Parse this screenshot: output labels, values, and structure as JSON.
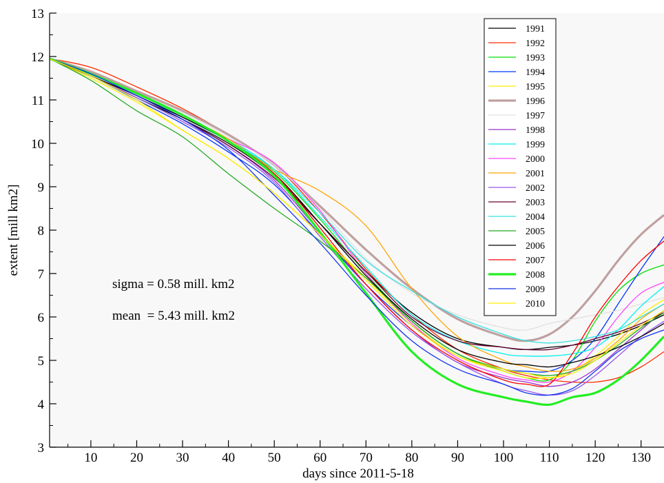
{
  "chart_data": {
    "type": "line",
    "xlabel": "days since 2011-5-18",
    "ylabel": "extent [mill km2]",
    "xlim": [
      1,
      135
    ],
    "ylim": [
      3,
      13
    ],
    "x_ticks": [
      10,
      20,
      30,
      40,
      50,
      60,
      70,
      80,
      90,
      100,
      110,
      120,
      130
    ],
    "y_ticks": [
      3,
      4,
      5,
      6,
      7,
      8,
      9,
      10,
      11,
      12,
      13
    ],
    "grid": false,
    "legend_position": "top-right",
    "annotations": [
      "sigma = 0.58 mill. km2",
      "mean  = 5.43 mill. km2"
    ],
    "x": [
      1,
      10,
      20,
      30,
      40,
      50,
      60,
      70,
      80,
      90,
      100,
      105,
      110,
      115,
      120,
      125,
      130,
      135
    ],
    "series": [
      {
        "name": "1991",
        "color": "#000000",
        "width": 1.3,
        "values": [
          11.95,
          11.55,
          11.05,
          10.55,
          10.0,
          9.25,
          8.15,
          7.05,
          6.1,
          5.5,
          5.3,
          5.25,
          5.3,
          5.35,
          5.45,
          5.6,
          5.8,
          6.05
        ]
      },
      {
        "name": "1992",
        "color": "#ff2a00",
        "width": 1.3,
        "values": [
          11.95,
          11.75,
          11.3,
          10.8,
          10.2,
          9.5,
          8.4,
          7.1,
          6.05,
          5.25,
          4.8,
          4.65,
          4.55,
          4.5,
          4.5,
          4.6,
          4.85,
          5.2
        ]
      },
      {
        "name": "1993",
        "color": "#00e000",
        "width": 1.3,
        "values": [
          11.95,
          11.6,
          11.1,
          10.6,
          10.05,
          9.35,
          8.25,
          7.0,
          5.9,
          5.15,
          4.75,
          4.6,
          4.55,
          5.0,
          5.9,
          6.6,
          7.0,
          7.2
        ]
      },
      {
        "name": "1994",
        "color": "#0033ff",
        "width": 1.3,
        "values": [
          11.95,
          11.55,
          11.0,
          10.45,
          9.8,
          9.05,
          7.9,
          6.75,
          5.8,
          5.1,
          4.8,
          4.75,
          4.75,
          5.0,
          5.5,
          6.3,
          7.1,
          7.85
        ]
      },
      {
        "name": "1995",
        "color": "#ffee00",
        "width": 1.3,
        "values": [
          11.95,
          11.5,
          10.95,
          10.3,
          9.65,
          8.85,
          7.9,
          6.9,
          5.85,
          5.1,
          4.75,
          4.6,
          4.6,
          4.75,
          5.1,
          5.55,
          6.05,
          6.4
        ]
      },
      {
        "name": "1996",
        "color": "#c0a0a0",
        "width": 3.2,
        "values": [
          11.95,
          11.65,
          11.2,
          10.75,
          10.2,
          9.5,
          8.55,
          7.55,
          6.65,
          5.95,
          5.55,
          5.45,
          5.6,
          6.0,
          6.6,
          7.3,
          7.9,
          8.35
        ]
      },
      {
        "name": "1997",
        "color": "#e0e0e0",
        "width": 1.3,
        "values": [
          11.95,
          11.6,
          11.15,
          10.7,
          10.15,
          9.5,
          8.5,
          7.35,
          6.55,
          6.05,
          5.75,
          5.7,
          5.85,
          5.95,
          6.05,
          6.15,
          6.3,
          6.45
        ]
      },
      {
        "name": "1998",
        "color": "#9933cc",
        "width": 1.3,
        "values": [
          11.95,
          11.55,
          11.1,
          10.55,
          9.95,
          9.15,
          7.95,
          6.75,
          5.7,
          4.95,
          4.6,
          4.5,
          4.4,
          4.5,
          4.8,
          5.25,
          5.7,
          6.15
        ]
      },
      {
        "name": "1999",
        "color": "#00f0f0",
        "width": 1.3,
        "values": [
          11.95,
          11.6,
          11.15,
          10.65,
          10.1,
          9.4,
          8.3,
          7.15,
          6.05,
          5.45,
          5.15,
          5.1,
          5.1,
          5.15,
          5.3,
          5.7,
          6.25,
          6.7
        ]
      },
      {
        "name": "2000",
        "color": "#ff44ff",
        "width": 1.3,
        "values": [
          11.95,
          11.6,
          11.15,
          10.6,
          10.1,
          9.55,
          8.45,
          7.0,
          5.85,
          5.05,
          4.65,
          4.55,
          4.5,
          4.75,
          5.3,
          6.0,
          6.55,
          6.8
        ]
      },
      {
        "name": "2001",
        "color": "#ffa500",
        "width": 1.3,
        "values": [
          11.95,
          11.6,
          11.15,
          10.65,
          10.1,
          9.4,
          8.9,
          8.1,
          6.65,
          5.55,
          5.0,
          4.85,
          4.75,
          4.8,
          5.05,
          5.45,
          5.95,
          6.3
        ]
      },
      {
        "name": "2002",
        "color": "#9955ee",
        "width": 1.3,
        "values": [
          11.95,
          11.55,
          11.05,
          10.5,
          9.9,
          9.1,
          7.85,
          6.65,
          5.65,
          4.95,
          4.45,
          4.3,
          4.2,
          4.3,
          4.65,
          5.1,
          5.55,
          5.9
        ]
      },
      {
        "name": "2003",
        "color": "#660033",
        "width": 1.3,
        "values": [
          11.95,
          11.55,
          11.1,
          10.55,
          9.95,
          9.2,
          8.15,
          7.05,
          6.0,
          5.45,
          5.3,
          5.25,
          5.25,
          5.35,
          5.5,
          5.65,
          5.85,
          6.1
        ]
      },
      {
        "name": "2004",
        "color": "#33e0e0",
        "width": 1.3,
        "values": [
          11.95,
          11.6,
          11.15,
          10.6,
          10.05,
          9.4,
          8.4,
          7.3,
          6.6,
          6.0,
          5.6,
          5.45,
          5.4,
          5.45,
          5.55,
          5.7,
          6.0,
          6.3
        ]
      },
      {
        "name": "2005",
        "color": "#22aa22",
        "width": 1.3,
        "values": [
          11.95,
          11.45,
          10.75,
          10.15,
          9.3,
          8.5,
          7.75,
          6.9,
          5.9,
          5.15,
          4.8,
          4.7,
          4.65,
          4.75,
          5.0,
          5.35,
          5.75,
          6.1
        ]
      },
      {
        "name": "2006",
        "color": "#000000",
        "width": 1.3,
        "values": [
          11.95,
          11.55,
          11.1,
          10.6,
          10.05,
          9.3,
          8.15,
          6.95,
          5.95,
          5.25,
          4.95,
          4.9,
          4.85,
          4.95,
          5.1,
          5.3,
          5.55,
          5.85
        ]
      },
      {
        "name": "2007",
        "color": "#ff0000",
        "width": 1.3,
        "values": [
          11.95,
          11.6,
          11.15,
          10.65,
          10.05,
          9.3,
          8.05,
          6.75,
          5.7,
          5.0,
          4.55,
          4.45,
          4.45,
          5.15,
          6.0,
          6.7,
          7.3,
          7.75
        ]
      },
      {
        "name": "2008",
        "color": "#22ee22",
        "width": 3.2,
        "values": [
          11.95,
          11.6,
          11.15,
          10.65,
          10.05,
          9.25,
          7.95,
          6.55,
          5.2,
          4.45,
          4.15,
          4.05,
          3.98,
          4.15,
          4.25,
          4.55,
          5.0,
          5.55
        ]
      },
      {
        "name": "2009",
        "color": "#1133ee",
        "width": 1.3,
        "values": [
          11.95,
          11.6,
          11.1,
          10.55,
          9.85,
          8.8,
          7.7,
          6.5,
          5.45,
          4.8,
          4.45,
          4.25,
          4.2,
          4.35,
          4.75,
          5.2,
          5.5,
          5.7
        ]
      },
      {
        "name": "2010",
        "color": "#ffee00",
        "width": 1.3,
        "values": [
          11.95,
          11.55,
          11.0,
          10.3,
          9.65,
          8.85,
          7.9,
          6.85,
          5.8,
          5.1,
          4.8,
          4.7,
          4.6,
          4.7,
          5.0,
          5.4,
          5.8,
          6.15
        ]
      }
    ]
  }
}
